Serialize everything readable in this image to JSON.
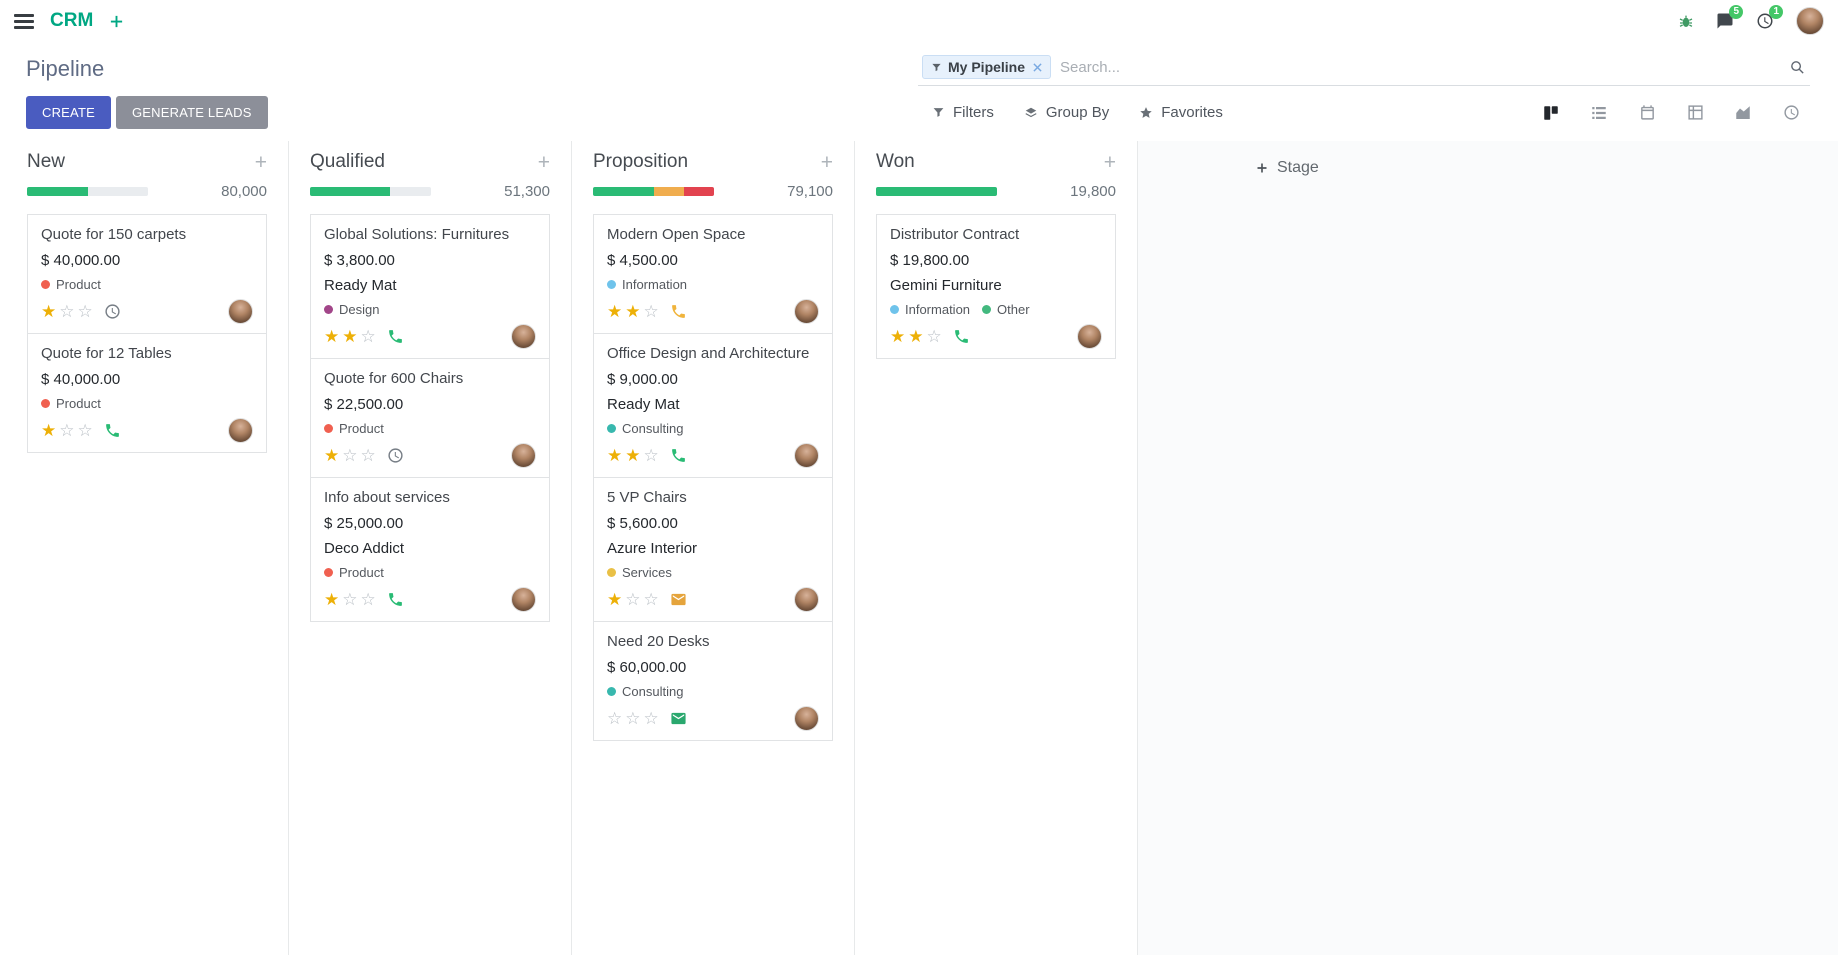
{
  "app": {
    "name": "CRM"
  },
  "navbar": {
    "messages_badge": "5",
    "activities_badge": "1"
  },
  "control_panel": {
    "title": "Pipeline",
    "create": "CREATE",
    "generate_leads": "GENERATE LEADS",
    "filters": "Filters",
    "group_by": "Group By",
    "favorites": "Favorites",
    "search": {
      "facet": "My Pipeline",
      "placeholder": "Search..."
    }
  },
  "board": {
    "add_stage": "Stage",
    "columns": [
      {
        "name": "New",
        "total": "80,000",
        "progress": [
          {
            "color": "success",
            "pct": 50
          }
        ],
        "cards": [
          {
            "title": "Quote for 150 carpets",
            "amount": "$ 40,000.00",
            "partner": "",
            "tags": [
              {
                "label": "Product",
                "color": "#f06050"
              }
            ],
            "stars": 1,
            "activity": "clock"
          },
          {
            "title": "Quote for 12 Tables",
            "amount": "$ 40,000.00",
            "partner": "",
            "tags": [
              {
                "label": "Product",
                "color": "#f06050"
              }
            ],
            "stars": 1,
            "activity": "phone_green"
          }
        ]
      },
      {
        "name": "Qualified",
        "total": "51,300",
        "progress": [
          {
            "color": "success",
            "pct": 66
          }
        ],
        "cards": [
          {
            "title": "Global Solutions: Furnitures",
            "amount": "$ 3,800.00",
            "partner": "Ready Mat",
            "tags": [
              {
                "label": "Design",
                "color": "#a24689"
              }
            ],
            "stars": 2,
            "activity": "phone_green"
          },
          {
            "title": "Quote for 600 Chairs",
            "amount": "$ 22,500.00",
            "partner": "",
            "tags": [
              {
                "label": "Product",
                "color": "#f06050"
              }
            ],
            "stars": 1,
            "activity": "clock"
          },
          {
            "title": "Info about services",
            "amount": "$ 25,000.00",
            "partner": "Deco Addict",
            "tags": [
              {
                "label": "Product",
                "color": "#f06050"
              }
            ],
            "stars": 1,
            "activity": "phone_green"
          }
        ]
      },
      {
        "name": "Proposition",
        "total": "79,100",
        "progress": [
          {
            "color": "success",
            "pct": 50
          },
          {
            "color": "warning",
            "pct": 25
          },
          {
            "color": "danger",
            "pct": 25
          }
        ],
        "cards": [
          {
            "title": "Modern Open Space",
            "amount": "$ 4,500.00",
            "partner": "",
            "tags": [
              {
                "label": "Information",
                "color": "#6fc3eb"
              }
            ],
            "stars": 2,
            "activity": "phone_yellow"
          },
          {
            "title": "Office Design and Architecture",
            "amount": "$ 9,000.00",
            "partner": "Ready Mat",
            "tags": [
              {
                "label": "Consulting",
                "color": "#38b8ae"
              }
            ],
            "stars": 2,
            "activity": "phone_green"
          },
          {
            "title": "5 VP Chairs",
            "amount": "$ 5,600.00",
            "partner": "Azure Interior",
            "tags": [
              {
                "label": "Services",
                "color": "#e9c046"
              }
            ],
            "stars": 1,
            "activity": "mail_orange"
          },
          {
            "title": "Need 20 Desks",
            "amount": "$ 60,000.00",
            "partner": "",
            "tags": [
              {
                "label": "Consulting",
                "color": "#38b8ae"
              }
            ],
            "stars": 0,
            "activity": "mail_green"
          }
        ]
      },
      {
        "name": "Won",
        "total": "19,800",
        "progress": [
          {
            "color": "success",
            "pct": 100
          }
        ],
        "cards": [
          {
            "title": "Distributor Contract",
            "amount": "$ 19,800.00",
            "partner": "Gemini Furniture",
            "tags": [
              {
                "label": "Information",
                "color": "#6fc3eb"
              },
              {
                "label": "Other",
                "color": "#43b97f"
              }
            ],
            "stars": 2,
            "activity": "phone_green"
          }
        ]
      }
    ]
  },
  "activity_icons": {
    "clock": {
      "icon": "clock",
      "color": "#767d85"
    },
    "phone_green": {
      "icon": "phone",
      "color": "#2abb75"
    },
    "phone_yellow": {
      "icon": "phone",
      "color": "#f0b43c"
    },
    "mail_orange": {
      "icon": "mail",
      "color": "#e5a43c"
    },
    "mail_green": {
      "icon": "mail",
      "color": "#2aa86e"
    }
  },
  "colors": {
    "brand": "#00a783",
    "primary": "#4a5cc0",
    "secondary": "#8c8f99",
    "success": "#2abb75",
    "warning": "#f0ad4e",
    "danger": "#e2434f",
    "track": "#e9ecef",
    "star_filled": "#edb007",
    "star_empty": "#b8bec4",
    "badge": "#44c767"
  }
}
